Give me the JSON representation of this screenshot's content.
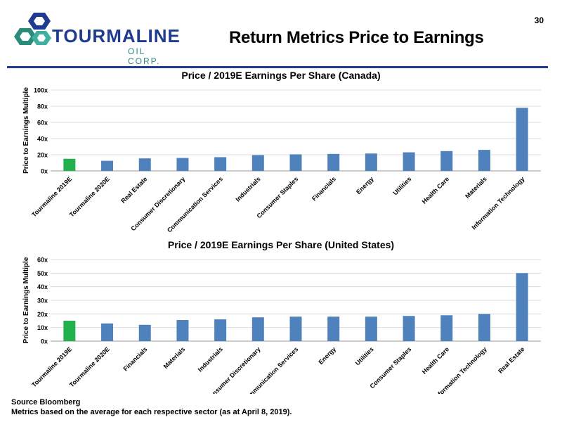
{
  "page_number": "30",
  "page_title": "Return Metrics Price to Earnings",
  "logo": {
    "name": "TOURMALINE",
    "subtitle": "OIL CORP."
  },
  "colors": {
    "highlight_bar": "#22b14c",
    "bar": "#4f81bd",
    "brand_blue": "#1f3b8f",
    "brand_teal": "#2a8b7a"
  },
  "footer": {
    "source": "Source Bloomberg",
    "note": "Metrics based on the average for each respective sector (as at April 8, 2019)."
  },
  "chart_data": [
    {
      "type": "bar",
      "title": "Price / 2019E Earnings Per Share (Canada)",
      "ylabel": "Price to Earnings Multiple",
      "ylim": [
        0,
        100
      ],
      "yticks": [
        "0x",
        "20x",
        "40x",
        "60x",
        "80x",
        "100x"
      ],
      "categories": [
        "Tourmaline 2019E",
        "Tourmaline 2020E",
        "Real Estate",
        "Consumer Discretionary",
        "Communication Services",
        "Industrials",
        "Consumer Staples",
        "Financials",
        "Energy",
        "Utilities",
        "Health Care",
        "Materials",
        "Information Technology"
      ],
      "values": [
        15,
        12.5,
        15.5,
        16,
        17,
        19.5,
        20.5,
        21,
        21.5,
        23,
        24.5,
        26,
        78
      ],
      "highlight_index": 0,
      "grid": true
    },
    {
      "type": "bar",
      "title": "Price / 2019E Earnings Per Share (United States)",
      "ylabel": "Price to Earnings Multiple",
      "ylim": [
        0,
        60
      ],
      "yticks": [
        "0x",
        "10x",
        "20x",
        "30x",
        "40x",
        "50x",
        "60x"
      ],
      "categories": [
        "Tourmaline 2019E",
        "Tourmaline 2020E",
        "Financials",
        "Materials",
        "Industrials",
        "Consumer Discretionary",
        "Communication Services",
        "Energy",
        "Utilities",
        "Consumer Staples",
        "Health Care",
        "Information Technology",
        "Real Estate"
      ],
      "values": [
        15,
        13,
        12,
        15.5,
        16,
        17.5,
        18,
        18,
        18,
        18.5,
        19,
        20,
        50
      ],
      "highlight_index": 0,
      "grid": true
    }
  ]
}
